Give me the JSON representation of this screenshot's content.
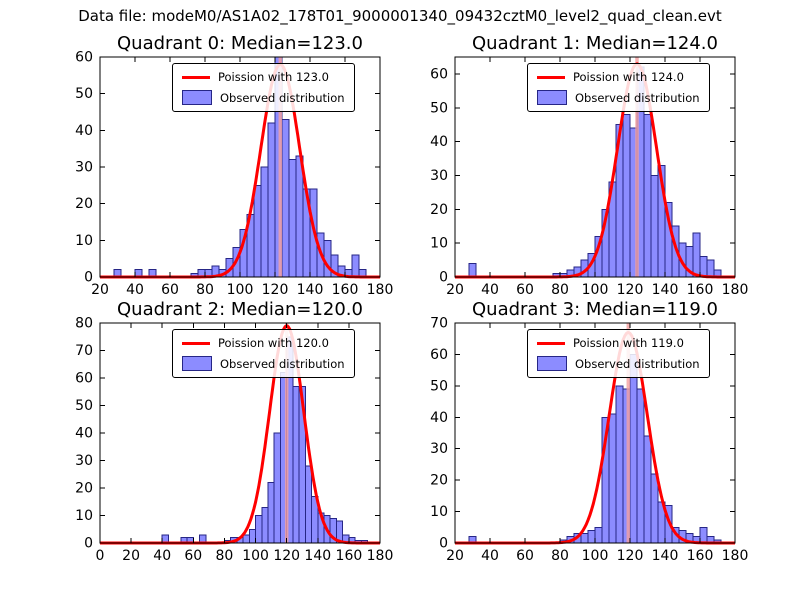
{
  "figure": {
    "title": "Data file: modeM0/AS1A02_178T01_9000001340_09432cztM0_level2_quad_clean.evt"
  },
  "colors": {
    "histogram_fill": "#8c8cff",
    "histogram_edge": "#262686",
    "poisson_curve": "#ff0000",
    "median_line": "#f4a0a0",
    "axis": "#000000",
    "text": "#000000"
  },
  "chart_data": [
    {
      "type": "bar",
      "subtype": "histogram_with_poisson_fit",
      "title": "Quadrant 0: Median=123.0",
      "median": 123.0,
      "poisson_lambda": 123.0,
      "curve_peak": 58,
      "legend": [
        "Poission with 123.0",
        "Observed distribution"
      ],
      "legend_position": "upper right",
      "grid": false,
      "xlim": [
        20,
        180
      ],
      "ylim": [
        0,
        60
      ],
      "xticks": [
        20,
        40,
        60,
        80,
        100,
        120,
        140,
        160,
        180
      ],
      "yticks": [
        0,
        10,
        20,
        30,
        40,
        50,
        60
      ],
      "bins_start": 28,
      "bin_width": 4,
      "counts": [
        2,
        0,
        0,
        2,
        0,
        2,
        0,
        0,
        0,
        0,
        0,
        1,
        2,
        2,
        3,
        2,
        5,
        8,
        13,
        17,
        25,
        30,
        42,
        60,
        43,
        32,
        33,
        24,
        24,
        12,
        10,
        6,
        3,
        2,
        6,
        2
      ]
    },
    {
      "type": "bar",
      "subtype": "histogram_with_poisson_fit",
      "title": "Quadrant 1: Median=124.0",
      "median": 124.0,
      "poisson_lambda": 124.0,
      "curve_peak": 63,
      "legend": [
        "Poission with 124.0",
        "Observed distribution"
      ],
      "legend_position": "upper right",
      "grid": false,
      "xlim": [
        20,
        180
      ],
      "ylim": [
        0,
        65
      ],
      "xticks": [
        20,
        40,
        60,
        80,
        100,
        120,
        140,
        160,
        180
      ],
      "yticks": [
        0,
        10,
        20,
        30,
        40,
        50,
        60
      ],
      "bins_start": 28,
      "bin_width": 4,
      "counts": [
        4,
        0,
        0,
        0,
        0,
        0,
        0,
        0,
        0,
        0,
        0,
        0,
        1,
        1,
        2,
        3,
        5,
        7,
        12,
        20,
        28,
        45,
        48,
        44,
        62,
        48,
        30,
        33,
        22,
        15,
        10,
        9,
        13,
        6,
        5,
        2
      ]
    },
    {
      "type": "bar",
      "subtype": "histogram_with_poisson_fit",
      "title": "Quadrant 2: Median=120.0",
      "median": 120.0,
      "poisson_lambda": 120.0,
      "curve_peak": 79,
      "legend": [
        "Poission with 120.0",
        "Observed distribution"
      ],
      "legend_position": "upper right",
      "grid": false,
      "xlim": [
        0,
        180
      ],
      "ylim": [
        0,
        80
      ],
      "xticks": [
        0,
        20,
        40,
        60,
        80,
        100,
        120,
        140,
        160,
        180
      ],
      "yticks": [
        0,
        10,
        20,
        30,
        40,
        50,
        60,
        70,
        80
      ],
      "bins_start": 36,
      "bin_width": 4,
      "counts": [
        0,
        3,
        0,
        0,
        2,
        2,
        0,
        3,
        0,
        0,
        0,
        1,
        2,
        2,
        3,
        5,
        10,
        13,
        22,
        40,
        62,
        75,
        57,
        57,
        28,
        17,
        11,
        10,
        9,
        8,
        3,
        2,
        1,
        1
      ]
    },
    {
      "type": "bar",
      "subtype": "histogram_with_poisson_fit",
      "title": "Quadrant 3: Median=119.0",
      "median": 119.0,
      "poisson_lambda": 119.0,
      "curve_peak": 67,
      "legend": [
        "Poission with 119.0",
        "Observed distribution"
      ],
      "legend_position": "upper right",
      "grid": false,
      "xlim": [
        20,
        180
      ],
      "ylim": [
        0,
        70
      ],
      "xticks": [
        20,
        40,
        60,
        80,
        100,
        120,
        140,
        160,
        180
      ],
      "yticks": [
        0,
        10,
        20,
        30,
        40,
        50,
        60,
        70
      ],
      "bins_start": 28,
      "bin_width": 4,
      "counts": [
        2,
        0,
        0,
        0,
        0,
        0,
        0,
        0,
        0,
        0,
        0,
        0,
        0,
        1,
        2,
        3,
        3,
        4,
        5,
        40,
        41,
        50,
        49,
        60,
        49,
        34,
        22,
        13,
        12,
        5,
        4,
        3,
        2,
        5,
        2,
        1
      ]
    }
  ]
}
